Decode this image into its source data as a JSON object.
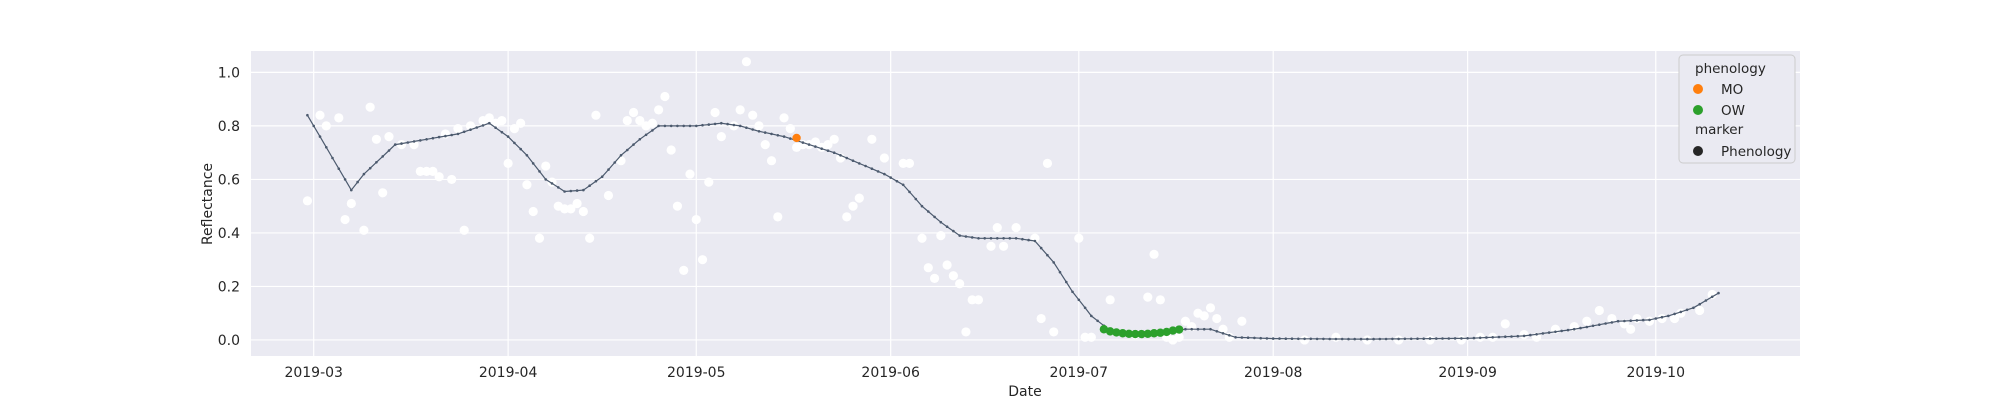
{
  "chart_data": {
    "type": "scatter",
    "title": "",
    "xlabel": "Date",
    "ylabel": "Reflectance",
    "xlim": [
      "2019-02-19",
      "2019-10-24"
    ],
    "ylim": [
      -0.06,
      1.08
    ],
    "grid": true,
    "legend_placement": "top-right",
    "x_ticks": [
      "2019-03",
      "2019-04",
      "2019-05",
      "2019-06",
      "2019-07",
      "2019-08",
      "2019-09",
      "2019-10"
    ],
    "x_tick_dates": [
      "2019-03-01",
      "2019-04-01",
      "2019-05-01",
      "2019-06-01",
      "2019-07-01",
      "2019-08-01",
      "2019-09-01",
      "2019-10-01"
    ],
    "y_ticks": [
      "0.0",
      "0.2",
      "0.4",
      "0.6",
      "0.8",
      "1.0"
    ],
    "y_tick_values": [
      0.0,
      0.2,
      0.4,
      0.6,
      0.8,
      1.0
    ],
    "colors": {
      "plot_bg": "#eaeaf2",
      "grid": "#ffffff",
      "raw_points": "#ffffff",
      "curve": "#4c5a6e",
      "MO": "#ff7f0e",
      "OW": "#2ca02c",
      "marker_legend": "#262626"
    },
    "legend": {
      "title_hue": "phenology",
      "hue_entries": [
        "MO",
        "OW"
      ],
      "title_style": "marker",
      "style_entries": [
        "Phenology"
      ]
    },
    "raw_observations": [
      [
        "2019-02-28",
        0.52
      ],
      [
        "2019-03-02",
        0.84
      ],
      [
        "2019-03-03",
        0.8
      ],
      [
        "2019-03-05",
        0.83
      ],
      [
        "2019-03-06",
        0.45
      ],
      [
        "2019-03-07",
        0.51
      ],
      [
        "2019-03-09",
        0.41
      ],
      [
        "2019-03-10",
        0.87
      ],
      [
        "2019-03-11",
        0.75
      ],
      [
        "2019-03-12",
        0.55
      ],
      [
        "2019-03-13",
        0.76
      ],
      [
        "2019-03-15",
        0.73
      ],
      [
        "2019-03-17",
        0.73
      ],
      [
        "2019-03-18",
        0.63
      ],
      [
        "2019-03-19",
        0.63
      ],
      [
        "2019-03-20",
        0.63
      ],
      [
        "2019-03-21",
        0.61
      ],
      [
        "2019-03-22",
        0.77
      ],
      [
        "2019-03-23",
        0.6
      ],
      [
        "2019-03-24",
        0.79
      ],
      [
        "2019-03-25",
        0.41
      ],
      [
        "2019-03-26",
        0.8
      ],
      [
        "2019-03-28",
        0.82
      ],
      [
        "2019-03-29",
        0.83
      ],
      [
        "2019-03-30",
        0.81
      ],
      [
        "2019-03-31",
        0.82
      ],
      [
        "2019-04-01",
        0.66
      ],
      [
        "2019-04-02",
        0.79
      ],
      [
        "2019-04-03",
        0.81
      ],
      [
        "2019-04-04",
        0.58
      ],
      [
        "2019-04-05",
        0.48
      ],
      [
        "2019-04-06",
        0.38
      ],
      [
        "2019-04-07",
        0.65
      ],
      [
        "2019-04-08",
        0.59
      ],
      [
        "2019-04-09",
        0.5
      ],
      [
        "2019-04-10",
        0.49
      ],
      [
        "2019-04-11",
        0.49
      ],
      [
        "2019-04-12",
        0.51
      ],
      [
        "2019-04-13",
        0.48
      ],
      [
        "2019-04-14",
        0.38
      ],
      [
        "2019-04-15",
        0.84
      ],
      [
        "2019-04-17",
        0.54
      ],
      [
        "2019-04-19",
        0.67
      ],
      [
        "2019-04-20",
        0.82
      ],
      [
        "2019-04-21",
        0.85
      ],
      [
        "2019-04-22",
        0.82
      ],
      [
        "2019-04-23",
        0.8
      ],
      [
        "2019-04-24",
        0.81
      ],
      [
        "2019-04-25",
        0.86
      ],
      [
        "2019-04-26",
        0.91
      ],
      [
        "2019-04-27",
        0.71
      ],
      [
        "2019-04-28",
        0.5
      ],
      [
        "2019-04-29",
        0.26
      ],
      [
        "2019-04-30",
        0.62
      ],
      [
        "2019-05-01",
        0.45
      ],
      [
        "2019-05-02",
        0.3
      ],
      [
        "2019-05-03",
        0.59
      ],
      [
        "2019-05-04",
        0.85
      ],
      [
        "2019-05-05",
        0.76
      ],
      [
        "2019-05-07",
        0.8
      ],
      [
        "2019-05-08",
        0.86
      ],
      [
        "2019-05-09",
        1.04
      ],
      [
        "2019-05-10",
        0.84
      ],
      [
        "2019-05-11",
        0.8
      ],
      [
        "2019-05-12",
        0.73
      ],
      [
        "2019-05-13",
        0.67
      ],
      [
        "2019-05-14",
        0.46
      ],
      [
        "2019-05-15",
        0.83
      ],
      [
        "2019-05-16",
        0.79
      ],
      [
        "2019-05-17",
        0.72
      ],
      [
        "2019-05-18",
        0.73
      ],
      [
        "2019-05-19",
        0.73
      ],
      [
        "2019-05-20",
        0.74
      ],
      [
        "2019-05-21",
        0.72
      ],
      [
        "2019-05-22",
        0.73
      ],
      [
        "2019-05-23",
        0.75
      ],
      [
        "2019-05-24",
        0.68
      ],
      [
        "2019-05-25",
        0.46
      ],
      [
        "2019-05-26",
        0.5
      ],
      [
        "2019-05-27",
        0.53
      ],
      [
        "2019-05-29",
        0.75
      ],
      [
        "2019-05-31",
        0.68
      ],
      [
        "2019-06-03",
        0.66
      ],
      [
        "2019-06-04",
        0.66
      ],
      [
        "2019-06-06",
        0.38
      ],
      [
        "2019-06-07",
        0.27
      ],
      [
        "2019-06-08",
        0.23
      ],
      [
        "2019-06-09",
        0.39
      ],
      [
        "2019-06-10",
        0.28
      ],
      [
        "2019-06-11",
        0.24
      ],
      [
        "2019-06-12",
        0.21
      ],
      [
        "2019-06-13",
        0.03
      ],
      [
        "2019-06-14",
        0.15
      ],
      [
        "2019-06-15",
        0.15
      ],
      [
        "2019-06-17",
        0.35
      ],
      [
        "2019-06-18",
        0.42
      ],
      [
        "2019-06-19",
        0.35
      ],
      [
        "2019-06-21",
        0.42
      ],
      [
        "2019-06-24",
        0.38
      ],
      [
        "2019-06-25",
        0.08
      ],
      [
        "2019-06-26",
        0.66
      ],
      [
        "2019-06-27",
        0.03
      ],
      [
        "2019-07-01",
        0.38
      ],
      [
        "2019-07-02",
        0.01
      ],
      [
        "2019-07-03",
        0.01
      ],
      [
        "2019-07-06",
        0.15
      ],
      [
        "2019-07-10",
        0.02
      ],
      [
        "2019-07-12",
        0.16
      ],
      [
        "2019-07-13",
        0.32
      ],
      [
        "2019-07-14",
        0.15
      ],
      [
        "2019-07-15",
        0.01
      ],
      [
        "2019-07-16",
        0.0
      ],
      [
        "2019-07-17",
        0.01
      ],
      [
        "2019-07-18",
        0.07
      ],
      [
        "2019-07-19",
        0.05
      ],
      [
        "2019-07-20",
        0.1
      ],
      [
        "2019-07-21",
        0.09
      ],
      [
        "2019-07-22",
        0.12
      ],
      [
        "2019-07-23",
        0.08
      ],
      [
        "2019-07-24",
        0.04
      ],
      [
        "2019-07-25",
        0.01
      ],
      [
        "2019-07-27",
        0.07
      ],
      [
        "2019-08-06",
        0.0
      ],
      [
        "2019-08-11",
        0.01
      ],
      [
        "2019-08-16",
        0.0
      ],
      [
        "2019-08-21",
        0.0
      ],
      [
        "2019-08-26",
        0.0
      ],
      [
        "2019-08-31",
        0.0
      ],
      [
        "2019-09-03",
        0.01
      ],
      [
        "2019-09-05",
        0.01
      ],
      [
        "2019-09-07",
        0.06
      ],
      [
        "2019-09-10",
        0.02
      ],
      [
        "2019-09-12",
        0.01
      ],
      [
        "2019-09-15",
        0.04
      ],
      [
        "2019-09-18",
        0.05
      ],
      [
        "2019-09-20",
        0.07
      ],
      [
        "2019-09-22",
        0.11
      ],
      [
        "2019-09-24",
        0.08
      ],
      [
        "2019-09-26",
        0.06
      ],
      [
        "2019-09-27",
        0.04
      ],
      [
        "2019-09-28",
        0.08
      ],
      [
        "2019-09-30",
        0.07
      ],
      [
        "2019-10-02",
        0.08
      ],
      [
        "2019-10-04",
        0.08
      ],
      [
        "2019-10-05",
        0.1
      ],
      [
        "2019-10-08",
        0.11
      ],
      [
        "2019-10-10",
        0.17
      ]
    ],
    "fitted_curve": [
      [
        "2019-02-28",
        0.84
      ],
      [
        "2019-03-07",
        0.56
      ],
      [
        "2019-03-09",
        0.62
      ],
      [
        "2019-03-14",
        0.73
      ],
      [
        "2019-03-19",
        0.75
      ],
      [
        "2019-03-24",
        0.77
      ],
      [
        "2019-03-29",
        0.81
      ],
      [
        "2019-04-01",
        0.76
      ],
      [
        "2019-04-04",
        0.69
      ],
      [
        "2019-04-07",
        0.6
      ],
      [
        "2019-04-10",
        0.555
      ],
      [
        "2019-04-13",
        0.56
      ],
      [
        "2019-04-16",
        0.61
      ],
      [
        "2019-04-19",
        0.69
      ],
      [
        "2019-04-22",
        0.75
      ],
      [
        "2019-04-25",
        0.8
      ],
      [
        "2019-05-01",
        0.8
      ],
      [
        "2019-05-05",
        0.81
      ],
      [
        "2019-05-08",
        0.8
      ],
      [
        "2019-05-11",
        0.78
      ],
      [
        "2019-05-15",
        0.76
      ],
      [
        "2019-05-19",
        0.73
      ],
      [
        "2019-05-23",
        0.7
      ],
      [
        "2019-05-27",
        0.66
      ],
      [
        "2019-05-31",
        0.62
      ],
      [
        "2019-06-03",
        0.58
      ],
      [
        "2019-06-06",
        0.5
      ],
      [
        "2019-06-09",
        0.44
      ],
      [
        "2019-06-12",
        0.39
      ],
      [
        "2019-06-15",
        0.38
      ],
      [
        "2019-06-21",
        0.38
      ],
      [
        "2019-06-24",
        0.37
      ],
      [
        "2019-06-27",
        0.29
      ],
      [
        "2019-06-30",
        0.18
      ],
      [
        "2019-07-03",
        0.09
      ],
      [
        "2019-07-06",
        0.035
      ],
      [
        "2019-07-10",
        0.02
      ],
      [
        "2019-07-14",
        0.025
      ],
      [
        "2019-07-18",
        0.04
      ],
      [
        "2019-07-22",
        0.04
      ],
      [
        "2019-07-26",
        0.01
      ],
      [
        "2019-08-01",
        0.005
      ],
      [
        "2019-08-15",
        0.003
      ],
      [
        "2019-09-01",
        0.006
      ],
      [
        "2019-09-10",
        0.015
      ],
      [
        "2019-09-18",
        0.04
      ],
      [
        "2019-09-25",
        0.07
      ],
      [
        "2019-09-30",
        0.075
      ],
      [
        "2019-10-03",
        0.09
      ],
      [
        "2019-10-07",
        0.12
      ],
      [
        "2019-10-11",
        0.175
      ]
    ],
    "phenology_points": [
      {
        "class": "MO",
        "x": "2019-05-17",
        "y": 0.755
      },
      {
        "class": "OW",
        "x": "2019-07-05",
        "y": 0.04
      },
      {
        "class": "OW",
        "x": "2019-07-06",
        "y": 0.032
      },
      {
        "class": "OW",
        "x": "2019-07-07",
        "y": 0.028
      },
      {
        "class": "OW",
        "x": "2019-07-08",
        "y": 0.025
      },
      {
        "class": "OW",
        "x": "2019-07-09",
        "y": 0.023
      },
      {
        "class": "OW",
        "x": "2019-07-10",
        "y": 0.022
      },
      {
        "class": "OW",
        "x": "2019-07-11",
        "y": 0.022
      },
      {
        "class": "OW",
        "x": "2019-07-12",
        "y": 0.023
      },
      {
        "class": "OW",
        "x": "2019-07-13",
        "y": 0.025
      },
      {
        "class": "OW",
        "x": "2019-07-14",
        "y": 0.027
      },
      {
        "class": "OW",
        "x": "2019-07-15",
        "y": 0.03
      },
      {
        "class": "OW",
        "x": "2019-07-16",
        "y": 0.035
      },
      {
        "class": "OW",
        "x": "2019-07-17",
        "y": 0.039
      }
    ]
  }
}
